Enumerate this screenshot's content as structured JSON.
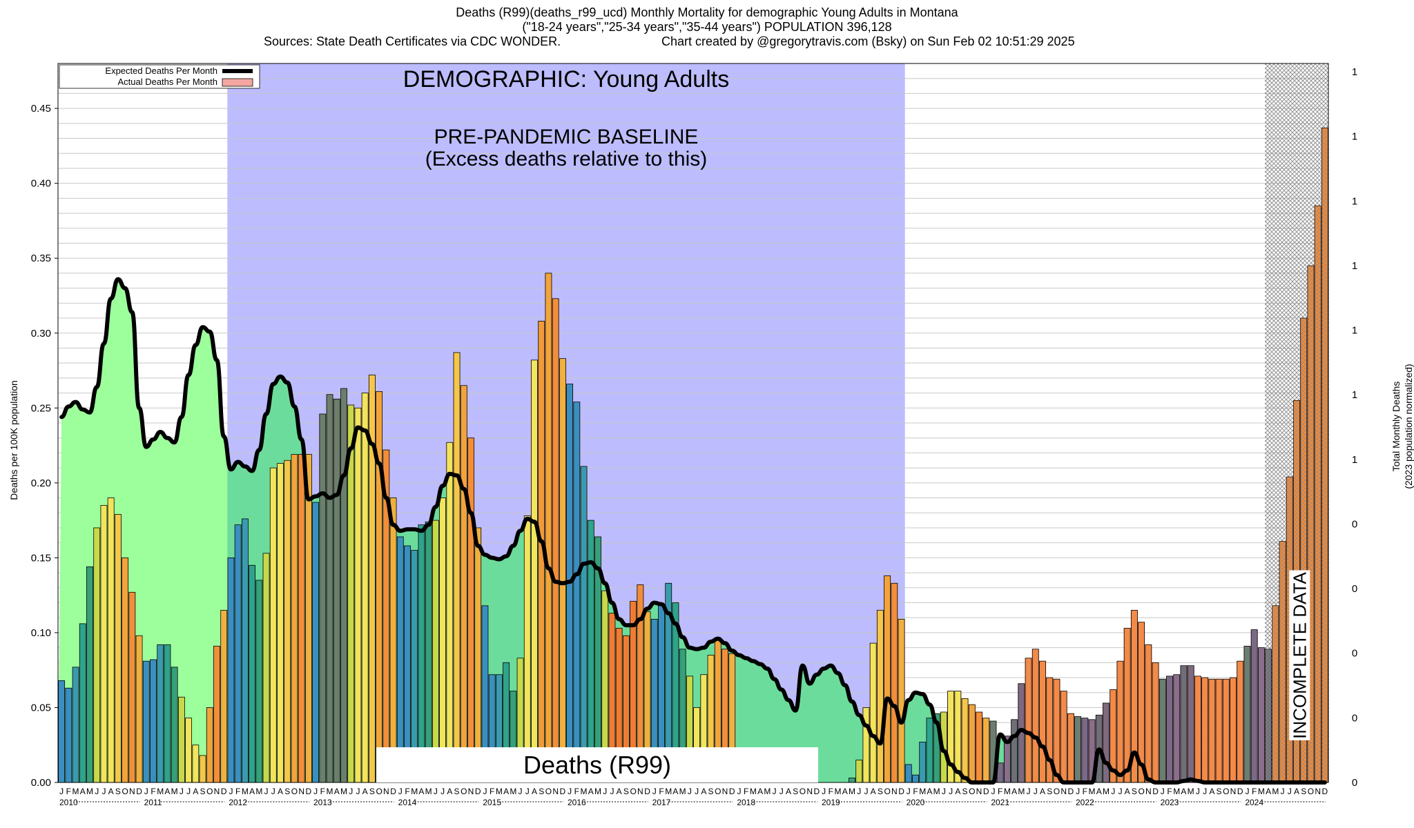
{
  "header": {
    "line1": "Deaths (R99)(deaths_r99_ucd) Monthly Mortality for demographic Young Adults in Montana",
    "line2": "(\"18-24 years\",\"25-34 years\",\"35-44 years\") POPULATION 396,128",
    "line3_left": "Sources: State Death Certificates via CDC WONDER.",
    "line3_right": "Chart created by @gregorytravis.com (Bsky) on Sun Feb 02 10:51:29 2025"
  },
  "colors": {
    "expected_line": "#000000",
    "baseline_band": "#bcbcff",
    "pre_green": "#9cff9c",
    "band_green": "#6cdc9c",
    "excess_fill": "#f4a6a0",
    "incomplete_hatch": "#888888"
  },
  "chart_data": {
    "type": "bar",
    "title": "DEMOGRAPHIC: Young Adults",
    "baseline_label_1": "PRE-PANDEMIC BASELINE",
    "baseline_label_2": "(Excess deaths relative to this)",
    "cause_label": "Deaths (R99)",
    "incomplete_label": "INCOMPLETE DATA",
    "ylabel": "Deaths per 100K population",
    "ylabel_right_1": "Total Monthly Deaths",
    "ylabel_right_2": "(2023 population normalized)",
    "ylim": [
      0,
      0.48
    ],
    "yticks": [
      "0.00",
      "0.05",
      "0.10",
      "0.15",
      "0.20",
      "0.25",
      "0.30",
      "0.35",
      "0.40",
      "0.45"
    ],
    "right_ticks": [
      "0",
      "0",
      "0",
      "0",
      "0",
      "1",
      "1",
      "1",
      "1",
      "1",
      "1",
      "1"
    ],
    "years": [
      "2010",
      "2011",
      "2012",
      "2013",
      "2014",
      "2015",
      "2016",
      "2017",
      "2018",
      "2019",
      "2020",
      "2021",
      "2022",
      "2023",
      "2024"
    ],
    "month_letters": [
      "J",
      "F",
      "M",
      "A",
      "M",
      "J",
      "J",
      "A",
      "S",
      "O",
      "N",
      "D"
    ],
    "baseline_period": [
      "2012-01",
      "2019-12"
    ],
    "incomplete_from": "2024-06",
    "legend": {
      "position": "top-left",
      "items": [
        "Expected Deaths Per Month",
        "Actual Deaths Per Month"
      ]
    },
    "series": [
      {
        "name": "Actual Deaths Per Month",
        "values": [
          0.068,
          0.063,
          0.077,
          0.106,
          0.144,
          0.17,
          0.185,
          0.19,
          0.179,
          0.15,
          0.127,
          0.098,
          0.081,
          0.082,
          0.092,
          0.092,
          0.077,
          0.057,
          0.043,
          0.025,
          0.018,
          0.05,
          0.091,
          0.115,
          0.15,
          0.172,
          0.176,
          0.145,
          0.135,
          0.153,
          0.21,
          0.213,
          0.215,
          0.219,
          0.219,
          0.219,
          0.187,
          0.246,
          0.259,
          0.256,
          0.263,
          0.252,
          0.25,
          0.26,
          0.272,
          0.261,
          0.222,
          0.19,
          0.164,
          0.158,
          0.155,
          0.172,
          0.174,
          0.175,
          0.19,
          0.227,
          0.287,
          0.265,
          0.23,
          0.17,
          0.118,
          0.072,
          0.072,
          0.08,
          0.061,
          0.083,
          0.178,
          0.282,
          0.308,
          0.34,
          0.323,
          0.283,
          0.266,
          0.254,
          0.211,
          0.175,
          0.164,
          0.128,
          0.113,
          0.103,
          0.098,
          0.121,
          0.132,
          0.114,
          0.109,
          0.119,
          0.133,
          0.12,
          0.089,
          0.071,
          0.05,
          0.072,
          0.085,
          0.095,
          0.089,
          0.086,
          0,
          0,
          0,
          0,
          0,
          0,
          0,
          0,
          0,
          0,
          0,
          0,
          0,
          0,
          0,
          0,
          0.003,
          0.015,
          0.05,
          0.093,
          0.115,
          0.138,
          0.133,
          0.109,
          0.012,
          0.005,
          0.027,
          0.043,
          0.046,
          0.047,
          0.061,
          0.061,
          0.056,
          0.052,
          0.047,
          0.043,
          0.041,
          0.013,
          0.031,
          0.042,
          0.066,
          0.083,
          0.089,
          0.081,
          0.07,
          0.069,
          0.061,
          0.046,
          0.044,
          0.043,
          0.042,
          0.045,
          0.053,
          0.062,
          0.081,
          0.103,
          0.115,
          0.107,
          0.092,
          0.08,
          0.069,
          0.071,
          0.072,
          0.078,
          0.078,
          0.071,
          0.07,
          0.069,
          0.069,
          0.069,
          0.07,
          0.081,
          0.091,
          0.102,
          0.09,
          0.089,
          0.118,
          0.161,
          0.204,
          0.255,
          0.31,
          0.345,
          0.385,
          0.437
        ]
      },
      {
        "name": "Expected Deaths Per Month",
        "values": [
          0.244,
          0.251,
          0.254,
          0.249,
          0.247,
          0.264,
          0.293,
          0.323,
          0.336,
          0.33,
          0.314,
          0.25,
          0.224,
          0.229,
          0.234,
          0.23,
          0.227,
          0.244,
          0.272,
          0.292,
          0.304,
          0.301,
          0.282,
          0.231,
          0.209,
          0.214,
          0.211,
          0.208,
          0.222,
          0.246,
          0.266,
          0.271,
          0.267,
          0.251,
          0.229,
          0.189,
          0.191,
          0.193,
          0.19,
          0.192,
          0.205,
          0.223,
          0.237,
          0.235,
          0.226,
          0.213,
          0.19,
          0.172,
          0.168,
          0.169,
          0.169,
          0.168,
          0.172,
          0.184,
          0.198,
          0.206,
          0.205,
          0.196,
          0.18,
          0.158,
          0.152,
          0.15,
          0.149,
          0.151,
          0.158,
          0.168,
          0.176,
          0.174,
          0.161,
          0.143,
          0.134,
          0.133,
          0.134,
          0.139,
          0.146,
          0.147,
          0.143,
          0.133,
          0.12,
          0.109,
          0.105,
          0.105,
          0.109,
          0.116,
          0.12,
          0.119,
          0.113,
          0.106,
          0.097,
          0.09,
          0.089,
          0.09,
          0.094,
          0.096,
          0.093,
          0.088,
          0.085,
          0.083,
          0.081,
          0.079,
          0.076,
          0.069,
          0.062,
          0.055,
          0.048,
          0.078,
          0.066,
          0.072,
          0.076,
          0.078,
          0.073,
          0.065,
          0.054,
          0.045,
          0.038,
          0.031,
          0.026,
          0.056,
          0.051,
          0.04,
          0.055,
          0.06,
          0.059,
          0.052,
          0.04,
          0.021,
          0.012,
          0.007,
          0.003,
          0.0,
          0.0,
          0.0,
          0.0,
          0.032,
          0.027,
          0.031,
          0.035,
          0.033,
          0.03,
          0.024,
          0.015,
          0.005,
          0.0,
          0.0,
          0.0,
          0.0,
          0.0,
          0.022,
          0.013,
          0.008,
          0.005,
          0.008,
          0.02,
          0.012,
          0.002,
          0.0,
          0.0,
          0.0,
          0.0,
          0.001,
          0.002,
          0.001,
          0.0,
          0.0,
          0.0,
          0.0,
          0.0,
          0.0,
          0.0,
          0.0,
          0.0,
          0.0,
          0.0,
          0.0,
          0.0,
          0.0,
          0.0,
          0.0,
          0.0,
          0.0
        ]
      }
    ]
  }
}
